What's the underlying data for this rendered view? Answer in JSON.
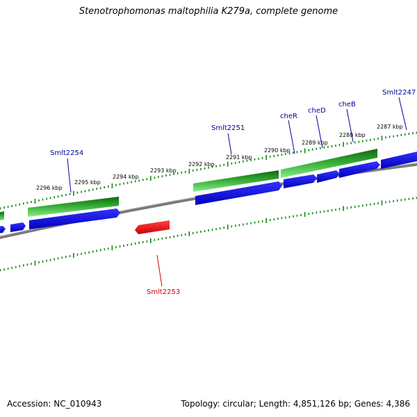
{
  "title": "Stenotrophomonas maltophilia K279a, complete genome",
  "accession": "Accession: NC_010943",
  "topology": "Topology: circular; Length: 4,851,126 bp; Genes: 4,386",
  "colors": {
    "backbone": "#808080",
    "ticks": "#118811",
    "gene_fwd": "#22aa22",
    "cds_fwd": "#0000ee",
    "gene_rev": "#ee0000",
    "label_fwd": "#000099",
    "label_rev": "#cc0000"
  },
  "kbp_labels": [
    "2296 kbp",
    "2295 kbp",
    "2294 kbp",
    "2293 kbp",
    "2292 kbp",
    "2291 kbp",
    "2290 kbp",
    "2289 kbp",
    "2288 kbp",
    "2287 kbp"
  ],
  "gene_labels": [
    {
      "text": "Smlt2254",
      "strand": "fwd"
    },
    {
      "text": "Smlt2251",
      "strand": "fwd"
    },
    {
      "text": "cheR",
      "strand": "fwd"
    },
    {
      "text": "cheD",
      "strand": "fwd"
    },
    {
      "text": "cheB",
      "strand": "fwd"
    },
    {
      "text": "Smlt2247",
      "strand": "fwd"
    },
    {
      "text": "Smlt2253",
      "strand": "rev"
    }
  ]
}
